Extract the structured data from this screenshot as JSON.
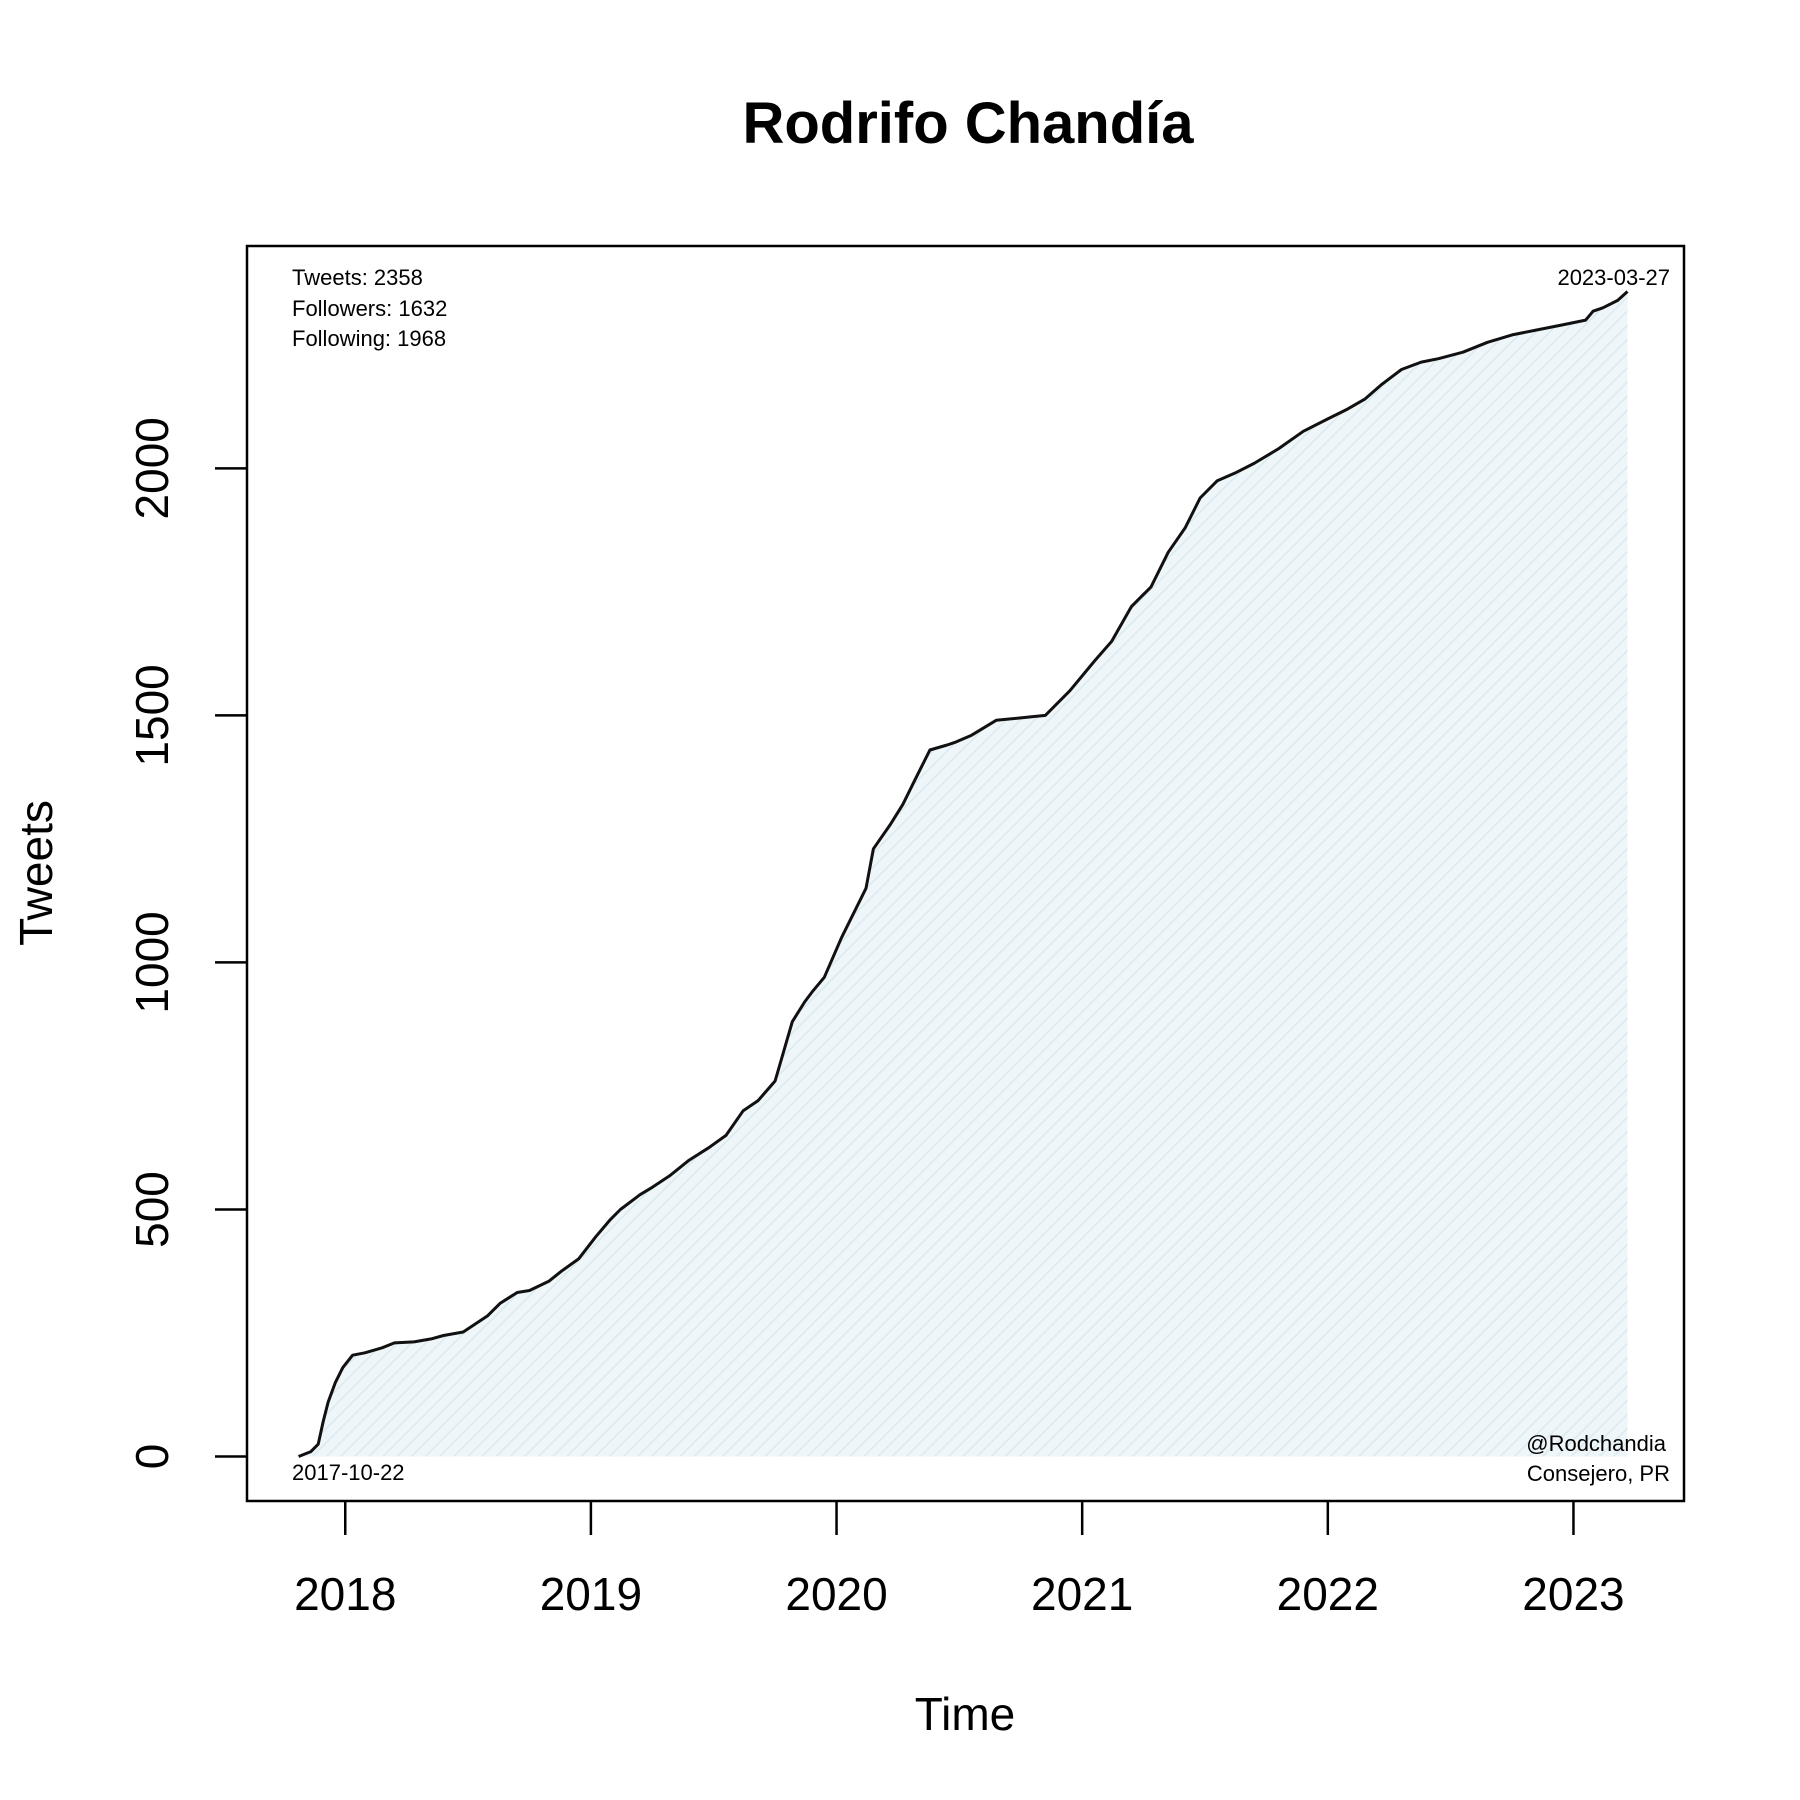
{
  "chart_data": {
    "type": "area",
    "title": "Rodrifo Chandía",
    "xlabel": "Time",
    "ylabel": "Tweets",
    "xlim": [
      2017.6,
      2023.45
    ],
    "ylim": [
      -90,
      2450
    ],
    "x_ticks": [
      2018,
      2019,
      2020,
      2021,
      2022,
      2023
    ],
    "x_tick_labels": [
      "2018",
      "2019",
      "2020",
      "2021",
      "2022",
      "2023"
    ],
    "y_ticks": [
      0,
      500,
      1000,
      1500,
      2000
    ],
    "y_tick_labels": [
      "0",
      "500",
      "1000",
      "1500",
      "2000"
    ],
    "grid": false,
    "fill_color": "#eaf4f7",
    "line_color": "#111111",
    "stats": {
      "tweets": "Tweets: 2358",
      "followers": "Followers: 1632",
      "following": "Following: 1968"
    },
    "start_date": "2017-10-22",
    "end_date": "2023-03-27",
    "handle": "@Rodchandia",
    "role": "Consejero, PR",
    "series": [
      {
        "x": [
          2017.81,
          2017.86,
          2017.89,
          2017.91,
          2017.93,
          2017.96,
          2017.99,
          2018.03,
          2018.08,
          2018.15,
          2018.2,
          2018.28,
          2018.35,
          2018.4,
          2018.48,
          2018.58,
          2018.63,
          2018.7,
          2018.75,
          2018.83,
          2018.88,
          2018.95,
          2019.02,
          2019.08,
          2019.12,
          2019.2,
          2019.25,
          2019.32,
          2019.4,
          2019.48,
          2019.55,
          2019.62,
          2019.68,
          2019.75,
          2019.82,
          2019.87,
          2019.9,
          2019.95,
          2020.02,
          2020.08,
          2020.12,
          2020.15,
          2020.22,
          2020.27,
          2020.32,
          2020.38,
          2020.45,
          2020.48,
          2020.55,
          2020.65,
          2020.75,
          2020.85,
          2020.95,
          2021.05,
          2021.12,
          2021.2,
          2021.28,
          2021.35,
          2021.42,
          2021.48,
          2021.55,
          2021.62,
          2021.7,
          2021.8,
          2021.9,
          2022.0,
          2022.08,
          2022.15,
          2022.22,
          2022.3,
          2022.38,
          2022.45,
          2022.55,
          2022.65,
          2022.75,
          2022.85,
          2022.95,
          2023.05,
          2023.08,
          2023.12,
          2023.18,
          2023.22
        ],
        "y": [
          0,
          10,
          25,
          70,
          110,
          150,
          180,
          205,
          210,
          220,
          230,
          232,
          238,
          245,
          252,
          285,
          310,
          332,
          336,
          355,
          375,
          400,
          445,
          480,
          500,
          530,
          545,
          568,
          600,
          625,
          650,
          700,
          720,
          760,
          880,
          920,
          940,
          970,
          1050,
          1110,
          1150,
          1230,
          1280,
          1320,
          1370,
          1430,
          1440,
          1445,
          1460,
          1490,
          1495,
          1500,
          1550,
          1610,
          1650,
          1720,
          1760,
          1830,
          1880,
          1940,
          1975,
          1990,
          2010,
          2040,
          2075,
          2100,
          2120,
          2140,
          2170,
          2200,
          2215,
          2222,
          2235,
          2255,
          2270,
          2280,
          2290,
          2300,
          2318,
          2325,
          2340,
          2358
        ]
      }
    ]
  }
}
